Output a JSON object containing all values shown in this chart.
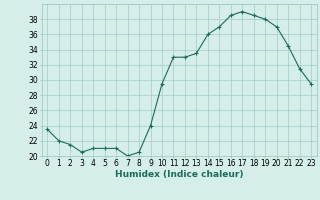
{
  "x": [
    0,
    1,
    2,
    3,
    4,
    5,
    6,
    7,
    8,
    9,
    10,
    11,
    12,
    13,
    14,
    15,
    16,
    17,
    18,
    19,
    20,
    21,
    22,
    23
  ],
  "y": [
    23.5,
    22.0,
    21.5,
    20.5,
    21.0,
    21.0,
    21.0,
    20.0,
    20.5,
    24.0,
    29.5,
    33.0,
    33.0,
    33.5,
    36.0,
    37.0,
    38.5,
    39.0,
    38.5,
    38.0,
    37.0,
    34.5,
    31.5,
    29.5
  ],
  "line_color": "#1a6b5a",
  "marker": "+",
  "bg_color": "#d5eee9",
  "grid_color": "#a0ccc5",
  "xlabel": "Humidex (Indice chaleur)",
  "ylim": [
    20,
    39
  ],
  "yticks": [
    20,
    22,
    24,
    26,
    28,
    30,
    32,
    34,
    36,
    38
  ],
  "xticks": [
    0,
    1,
    2,
    3,
    4,
    5,
    6,
    7,
    8,
    9,
    10,
    11,
    12,
    13,
    14,
    15,
    16,
    17,
    18,
    19,
    20,
    21,
    22,
    23
  ],
  "axis_fontsize": 5.5,
  "xlabel_fontsize": 6.5
}
